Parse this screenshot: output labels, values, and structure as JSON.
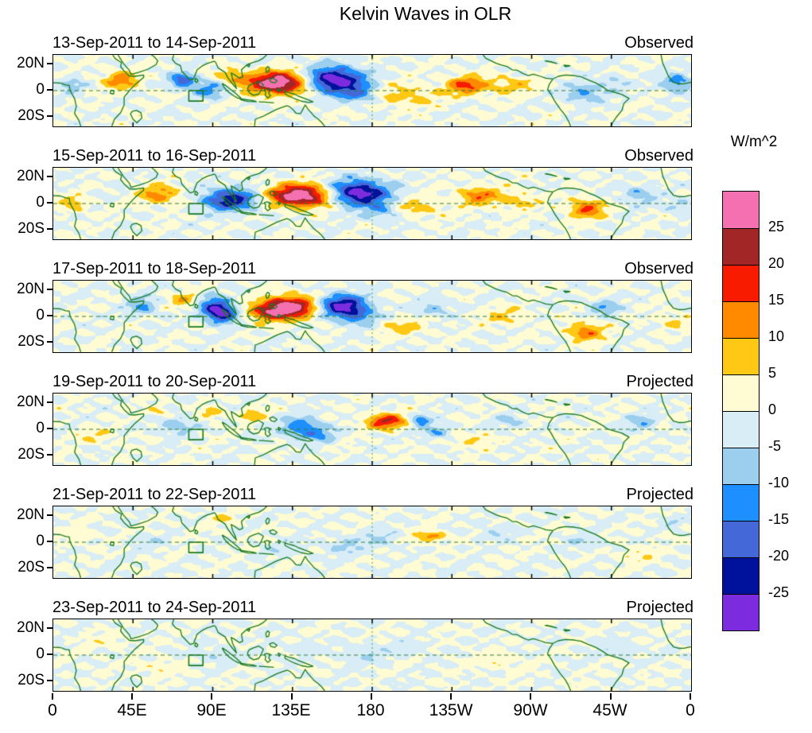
{
  "colorbar": {
    "label": "W/m^2",
    "tick_labels": [
      "25",
      "20",
      "15",
      "10",
      "5",
      "0",
      "-5",
      "-10",
      "-15",
      "-20",
      "-25"
    ]
  },
  "chart_data": {
    "type": "heatmap",
    "subtype": "filled-contour longitude-latitude anomaly panels with coastlines",
    "title": "Kelvin Waves in OLR",
    "units": "W/m^2",
    "x_ticks": [
      "0",
      "45E",
      "90E",
      "135E",
      "180",
      "135W",
      "90W",
      "45W",
      "0"
    ],
    "y_ticks": [
      "20N",
      "0",
      "20S"
    ],
    "lon_range_deg_east": [
      0,
      360
    ],
    "lat_range": [
      -27.5,
      27.5
    ],
    "levels": [
      -25,
      -20,
      -15,
      -10,
      -5,
      0,
      5,
      10,
      15,
      20,
      25
    ],
    "colors_low_to_high": [
      "#7D2BDF",
      "#00129B",
      "#4468D8",
      "#1E8FFF",
      "#9CCFEE",
      "#D8EDF6",
      "#FFFBD2",
      "#FFC814",
      "#FF8A00",
      "#F81B00",
      "#A32626",
      "#F470B0"
    ],
    "region_box": {
      "lon_min": 76.5,
      "lon_max": 84.5,
      "lat_min": -8,
      "lat_max": 0
    },
    "equator_line": "dashed",
    "dateline_line": "dashed at 180",
    "anomaly_format": [
      "lon_deg_east",
      "lat_deg",
      "peak_amplitude_W_per_m2",
      "sigma_lon_deg",
      "sigma_lat_deg"
    ],
    "panels": [
      {
        "label": "13-Sep-2011 to 14-Sep-2011",
        "status": "Observed",
        "anomalies": [
          [
            10,
            4,
            -8,
            5,
            4
          ],
          [
            38,
            8,
            13,
            7,
            5
          ],
          [
            73,
            8,
            -19,
            5,
            4
          ],
          [
            88,
            1,
            -12,
            7,
            5
          ],
          [
            100,
            11,
            9,
            6,
            4
          ],
          [
            128,
            6,
            32,
            13,
            6
          ],
          [
            158,
            8,
            -32,
            12,
            7
          ],
          [
            173,
            -3,
            -11,
            8,
            5
          ],
          [
            198,
            -4,
            8,
            13,
            6
          ],
          [
            233,
            4,
            16,
            8,
            5
          ],
          [
            258,
            4,
            8,
            10,
            5
          ],
          [
            300,
            -2,
            -11,
            8,
            5
          ],
          [
            316,
            6,
            -6,
            6,
            4
          ],
          [
            352,
            6,
            -14,
            6,
            5
          ]
        ]
      },
      {
        "label": "15-Sep-2011 to 16-Sep-2011",
        "status": "Observed",
        "anomalies": [
          [
            12,
            0,
            8,
            6,
            4
          ],
          [
            60,
            7,
            13,
            8,
            5
          ],
          [
            100,
            3,
            -24,
            11,
            6
          ],
          [
            140,
            6,
            32,
            13,
            6
          ],
          [
            172,
            8,
            -30,
            12,
            7
          ],
          [
            186,
            -6,
            -9,
            7,
            5
          ],
          [
            205,
            -3,
            8,
            10,
            5
          ],
          [
            240,
            6,
            13,
            8,
            5
          ],
          [
            262,
            2,
            7,
            9,
            5
          ],
          [
            301,
            -4,
            16,
            7,
            5
          ],
          [
            330,
            7,
            -9,
            7,
            5
          ],
          [
            354,
            -2,
            -7,
            6,
            4
          ]
        ]
      },
      {
        "label": "17-Sep-2011 to 18-Sep-2011",
        "status": "Observed",
        "anomalies": [
          [
            50,
            8,
            -11,
            6,
            5
          ],
          [
            75,
            12,
            10,
            6,
            4
          ],
          [
            90,
            9,
            -14,
            7,
            5
          ],
          [
            95,
            2,
            -26,
            6,
            5
          ],
          [
            120,
            3,
            13,
            8,
            5
          ],
          [
            134,
            7,
            30,
            11,
            6
          ],
          [
            163,
            8,
            -28,
            10,
            6
          ],
          [
            173,
            -1,
            -10,
            8,
            5
          ],
          [
            196,
            -8,
            7,
            9,
            5
          ],
          [
            215,
            6,
            -8,
            7,
            4
          ],
          [
            255,
            0,
            6,
            9,
            5
          ],
          [
            300,
            -12,
            14,
            7,
            5
          ],
          [
            311,
            7,
            -10,
            6,
            4
          ],
          [
            350,
            -4,
            6,
            6,
            4
          ]
        ]
      },
      {
        "label": "19-Sep-2011 to 20-Sep-2011",
        "status": "Projected",
        "anomalies": [
          [
            25,
            -5,
            5,
            8,
            4
          ],
          [
            60,
            14,
            6,
            5,
            3
          ],
          [
            70,
            3,
            -9,
            7,
            5
          ],
          [
            90,
            12,
            8,
            5,
            3
          ],
          [
            112,
            11,
            10,
            5,
            3
          ],
          [
            140,
            1,
            -15,
            8,
            6
          ],
          [
            152,
            -4,
            -8,
            6,
            4
          ],
          [
            188,
            6,
            20,
            8,
            4
          ],
          [
            207,
            7,
            -14,
            4,
            3
          ],
          [
            216,
            -2,
            -10,
            6,
            4
          ],
          [
            235,
            -8,
            6,
            8,
            4
          ],
          [
            258,
            6,
            -6,
            6,
            4
          ],
          [
            332,
            5,
            -9,
            6,
            4
          ]
        ]
      },
      {
        "label": "21-Sep-2011 to 22-Sep-2011",
        "status": "Projected",
        "anomalies": [
          [
            15,
            5,
            4,
            7,
            4
          ],
          [
            55,
            0,
            -4,
            7,
            4
          ],
          [
            95,
            18,
            5,
            6,
            3
          ],
          [
            130,
            -5,
            -4,
            8,
            4
          ],
          [
            165,
            -3,
            -6,
            8,
            5
          ],
          [
            185,
            3,
            -6,
            7,
            5
          ],
          [
            212,
            4,
            9,
            7,
            3
          ],
          [
            215,
            5,
            5,
            4,
            1.5
          ],
          [
            250,
            8,
            -5,
            7,
            4
          ],
          [
            300,
            0,
            -5,
            7,
            4
          ],
          [
            330,
            -10,
            5,
            8,
            4
          ],
          [
            350,
            15,
            -4,
            5,
            3
          ]
        ]
      },
      {
        "label": "23-Sep-2011 to 24-Sep-2011",
        "status": "Projected",
        "anomalies": [
          [
            30,
            10,
            3,
            8,
            4
          ],
          [
            60,
            -10,
            4,
            8,
            4
          ],
          [
            90,
            0,
            -4,
            8,
            4
          ],
          [
            140,
            5,
            -3,
            8,
            4
          ],
          [
            175,
            0,
            -5,
            9,
            5
          ],
          [
            200,
            5,
            -4,
            8,
            4
          ],
          [
            250,
            -5,
            4,
            9,
            4
          ],
          [
            320,
            5,
            -4,
            8,
            4
          ]
        ]
      }
    ]
  }
}
